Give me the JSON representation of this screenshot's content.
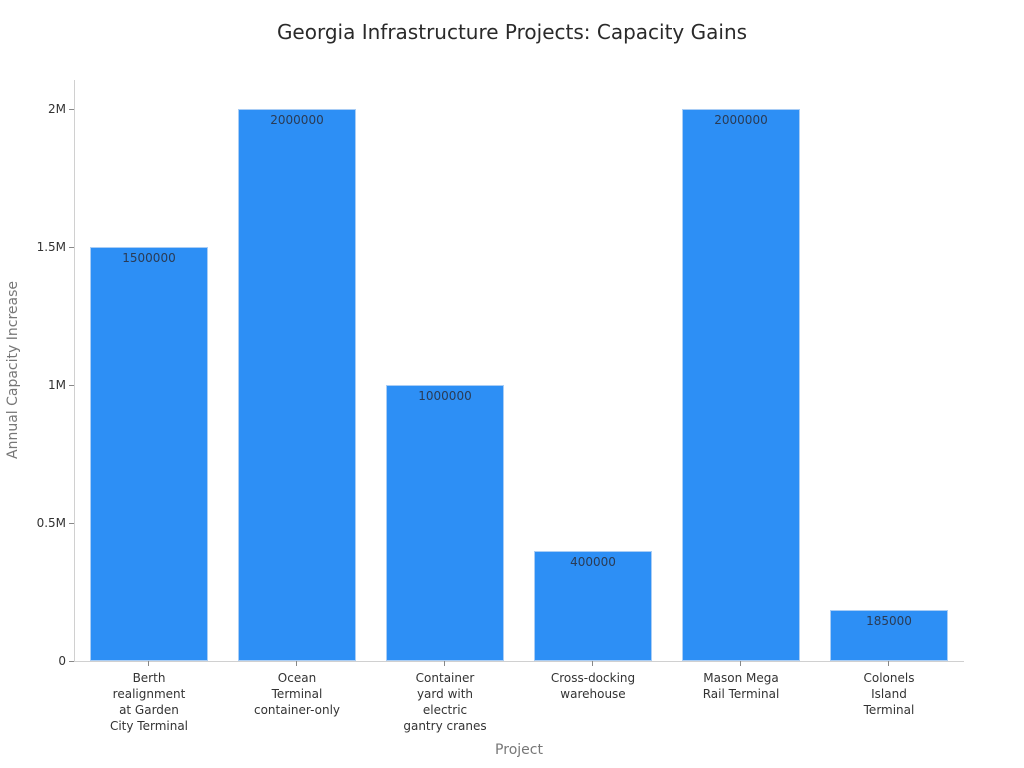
{
  "chart_data": {
    "type": "bar",
    "title": "Georgia Infrastructure Projects: Capacity Gains",
    "xlabel": "Project",
    "ylabel": "Annual Capacity Increase",
    "categories": [
      "Berth realignment at Garden City Terminal",
      "Ocean Terminal container-only",
      "Container yard with electric gantry cranes",
      "Cross-docking warehouse",
      "Mason Mega Rail Terminal",
      "Colonels Island Terminal"
    ],
    "category_labels_wrapped": [
      "Berth\nrealignment\nat Garden\nCity Terminal",
      "Ocean\nTerminal\ncontainer-only",
      "Container\nyard with\nelectric\ngantry cranes",
      "Cross-docking\nwarehouse",
      "Mason Mega\nRail Terminal",
      "Colonels\nIsland\nTerminal"
    ],
    "values": [
      1500000,
      2000000,
      1000000,
      400000,
      2000000,
      185000
    ],
    "value_labels": [
      "1500000",
      "2000000",
      "1000000",
      "400000",
      "2000000",
      "185000"
    ],
    "ylim": [
      0,
      2000000
    ],
    "yticks": [
      0,
      500000,
      1000000,
      1500000,
      2000000
    ],
    "ytick_labels": [
      "0",
      "0.5M",
      "1M",
      "1.5M",
      "2M"
    ],
    "grid": false,
    "legend": null,
    "bar_color": "#2d8ff5"
  }
}
